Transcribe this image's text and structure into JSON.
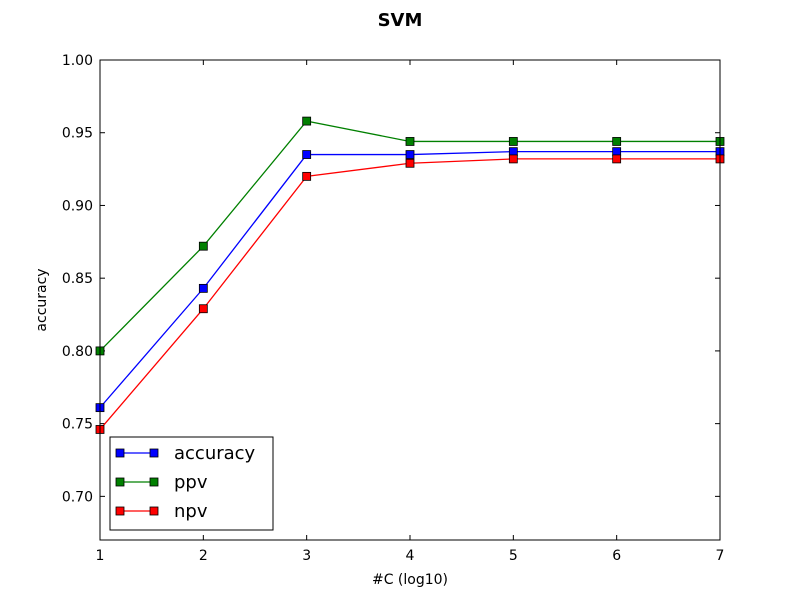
{
  "chart_data": {
    "type": "line",
    "title": "SVM",
    "xlabel": "#C (log10)",
    "ylabel": "accuracy",
    "x": [
      1,
      2,
      3,
      4,
      5,
      6,
      7
    ],
    "xlim": [
      1,
      7
    ],
    "ylim": [
      0.67,
      1.0
    ],
    "xticks": [
      "1",
      "2",
      "3",
      "4",
      "5",
      "6",
      "7"
    ],
    "yticks": [
      "0.70",
      "0.75",
      "0.80",
      "0.85",
      "0.90",
      "0.95",
      "1.00"
    ],
    "grid": false,
    "legend_position": "lower-left",
    "series": [
      {
        "name": "accuracy",
        "color": "#0000ff",
        "marker": "square",
        "values": [
          0.761,
          0.843,
          0.935,
          0.935,
          0.937,
          0.937,
          0.937
        ]
      },
      {
        "name": "ppv",
        "color": "#008000",
        "marker": "square",
        "values": [
          0.8,
          0.872,
          0.958,
          0.944,
          0.944,
          0.944,
          0.944
        ]
      },
      {
        "name": "npv",
        "color": "#ff0000",
        "marker": "square",
        "values": [
          0.746,
          0.829,
          0.92,
          0.929,
          0.932,
          0.932,
          0.932
        ]
      }
    ]
  }
}
